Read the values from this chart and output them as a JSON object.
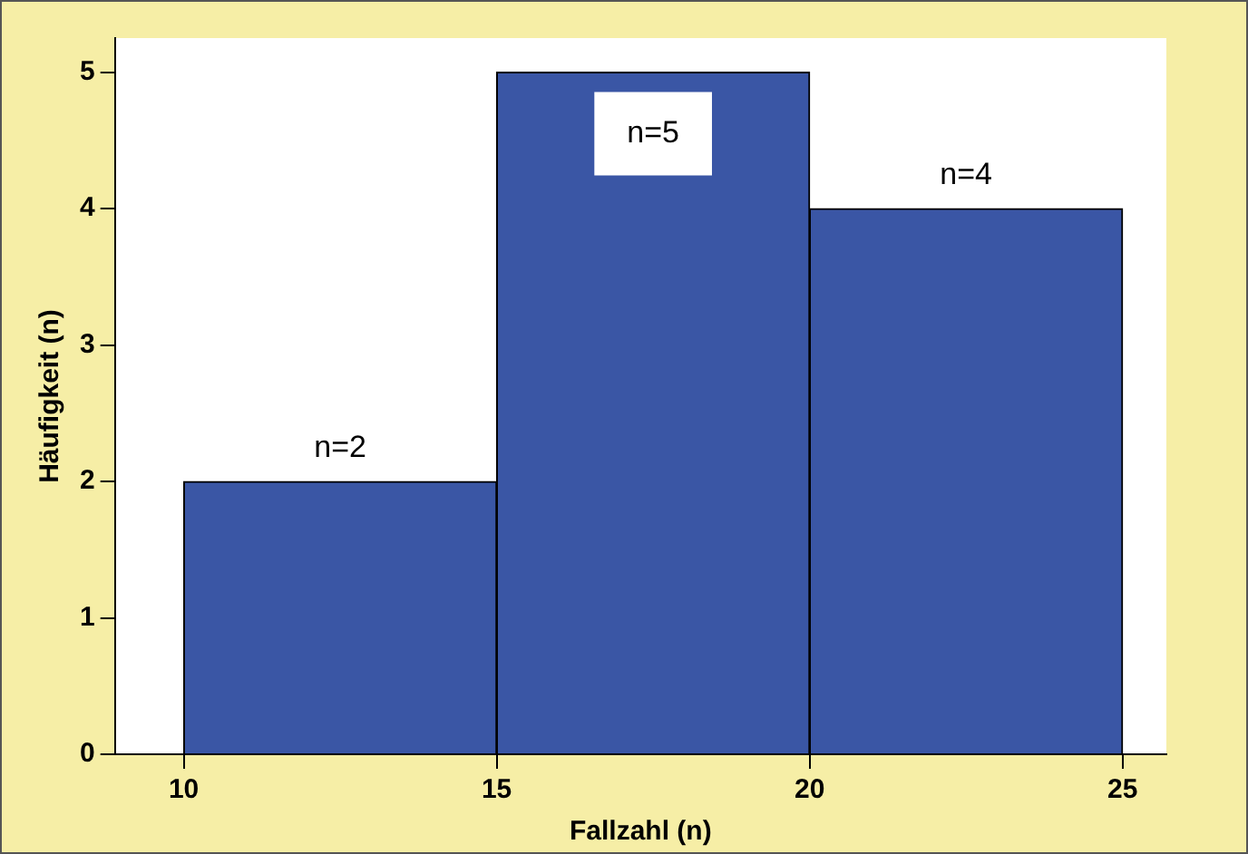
{
  "chart_data": {
    "type": "histogram",
    "xlabel": "Fallzahl (n)",
    "ylabel": "Häufigkeit (n)",
    "bins": [
      10,
      15,
      20,
      25
    ],
    "values": [
      2,
      5,
      4
    ],
    "color": "#3a56a5",
    "value_labels": [
      "n=2",
      "n=5",
      "n=4"
    ],
    "xlim": [
      8.9,
      25.7
    ],
    "xticks": [
      10,
      15,
      20,
      25
    ],
    "ylim": [
      0,
      5.25
    ],
    "yticks": [
      0,
      1,
      2,
      3,
      4,
      5
    ],
    "grid": false,
    "legend": false
  }
}
